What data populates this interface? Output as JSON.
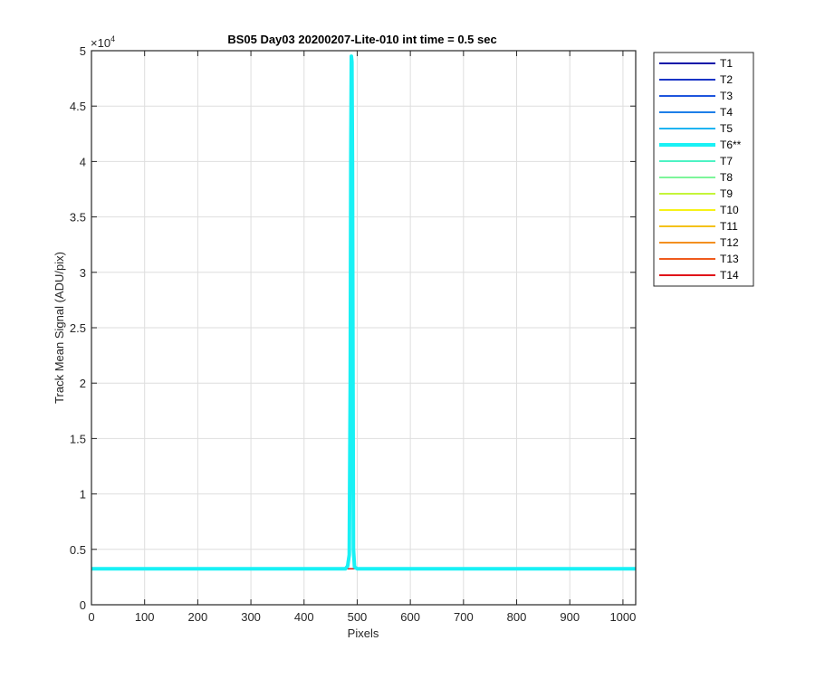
{
  "chart_data": {
    "type": "line",
    "title": "BS05 Day03 20200207-Lite-010 int time = 0.5 sec",
    "xlabel": "Pixels",
    "ylabel": "Track Mean Signal (ADU/pix)",
    "y_exponent_label": "×10",
    "y_exponent_power": "4",
    "xlim": [
      0,
      1024
    ],
    "ylim": [
      0,
      50000
    ],
    "xticks": [
      0,
      100,
      200,
      300,
      400,
      500,
      600,
      700,
      800,
      900,
      1000
    ],
    "xtick_labels": [
      "0",
      "100",
      "200",
      "300",
      "400",
      "500",
      "600",
      "700",
      "800",
      "900",
      "1000"
    ],
    "yticks": [
      0,
      5000,
      10000,
      15000,
      20000,
      25000,
      30000,
      35000,
      40000,
      45000,
      50000
    ],
    "ytick_labels": [
      "0",
      "0.5",
      "1",
      "1.5",
      "2",
      "2.5",
      "3",
      "3.5",
      "4",
      "4.5",
      "5"
    ],
    "grid": true,
    "legend_position": "outside-right-top",
    "baseline_value": 3250,
    "series": [
      {
        "name": "T1",
        "color": "#0b12a8",
        "values": [
          [
            0,
            3250
          ],
          [
            1024,
            3250
          ]
        ]
      },
      {
        "name": "T2",
        "color": "#1a35c6",
        "values": [
          [
            0,
            3250
          ],
          [
            1024,
            3250
          ]
        ]
      },
      {
        "name": "T3",
        "color": "#1e55dd",
        "values": [
          [
            0,
            3250
          ],
          [
            1024,
            3250
          ]
        ]
      },
      {
        "name": "T4",
        "color": "#1e7fe8",
        "values": [
          [
            0,
            3250
          ],
          [
            1024,
            3250
          ]
        ]
      },
      {
        "name": "T5",
        "color": "#1fb4f2",
        "values": [
          [
            0,
            3250
          ],
          [
            1024,
            3250
          ]
        ]
      },
      {
        "name": "T6**",
        "color": "#19f1f5",
        "highlight": true,
        "values": [
          [
            0,
            3250
          ],
          [
            478,
            3250
          ],
          [
            482,
            3500
          ],
          [
            485,
            4500
          ],
          [
            487,
            20000
          ],
          [
            488,
            40000
          ],
          [
            489,
            49500
          ],
          [
            490,
            49000
          ],
          [
            491,
            40000
          ],
          [
            492,
            20000
          ],
          [
            493,
            5000
          ],
          [
            495,
            3400
          ],
          [
            500,
            3250
          ],
          [
            1024,
            3250
          ]
        ]
      },
      {
        "name": "T7",
        "color": "#4df3c4",
        "values": [
          [
            0,
            3250
          ],
          [
            1024,
            3250
          ]
        ]
      },
      {
        "name": "T8",
        "color": "#7df59a",
        "values": [
          [
            0,
            3250
          ],
          [
            1024,
            3250
          ]
        ]
      },
      {
        "name": "T9",
        "color": "#c4f53a",
        "values": [
          [
            0,
            3250
          ],
          [
            1024,
            3250
          ]
        ]
      },
      {
        "name": "T10",
        "color": "#f7f218",
        "values": [
          [
            0,
            3250
          ],
          [
            1024,
            3250
          ]
        ]
      },
      {
        "name": "T11",
        "color": "#f4c21a",
        "values": [
          [
            0,
            3250
          ],
          [
            1024,
            3250
          ]
        ]
      },
      {
        "name": "T12",
        "color": "#f39020",
        "values": [
          [
            0,
            3250
          ],
          [
            1024,
            3250
          ]
        ]
      },
      {
        "name": "T13",
        "color": "#ef5a1c",
        "values": [
          [
            0,
            3250
          ],
          [
            1024,
            3250
          ]
        ]
      },
      {
        "name": "T14",
        "color": "#e0141a",
        "values": [
          [
            0,
            3250
          ],
          [
            1024,
            3250
          ]
        ]
      }
    ]
  }
}
